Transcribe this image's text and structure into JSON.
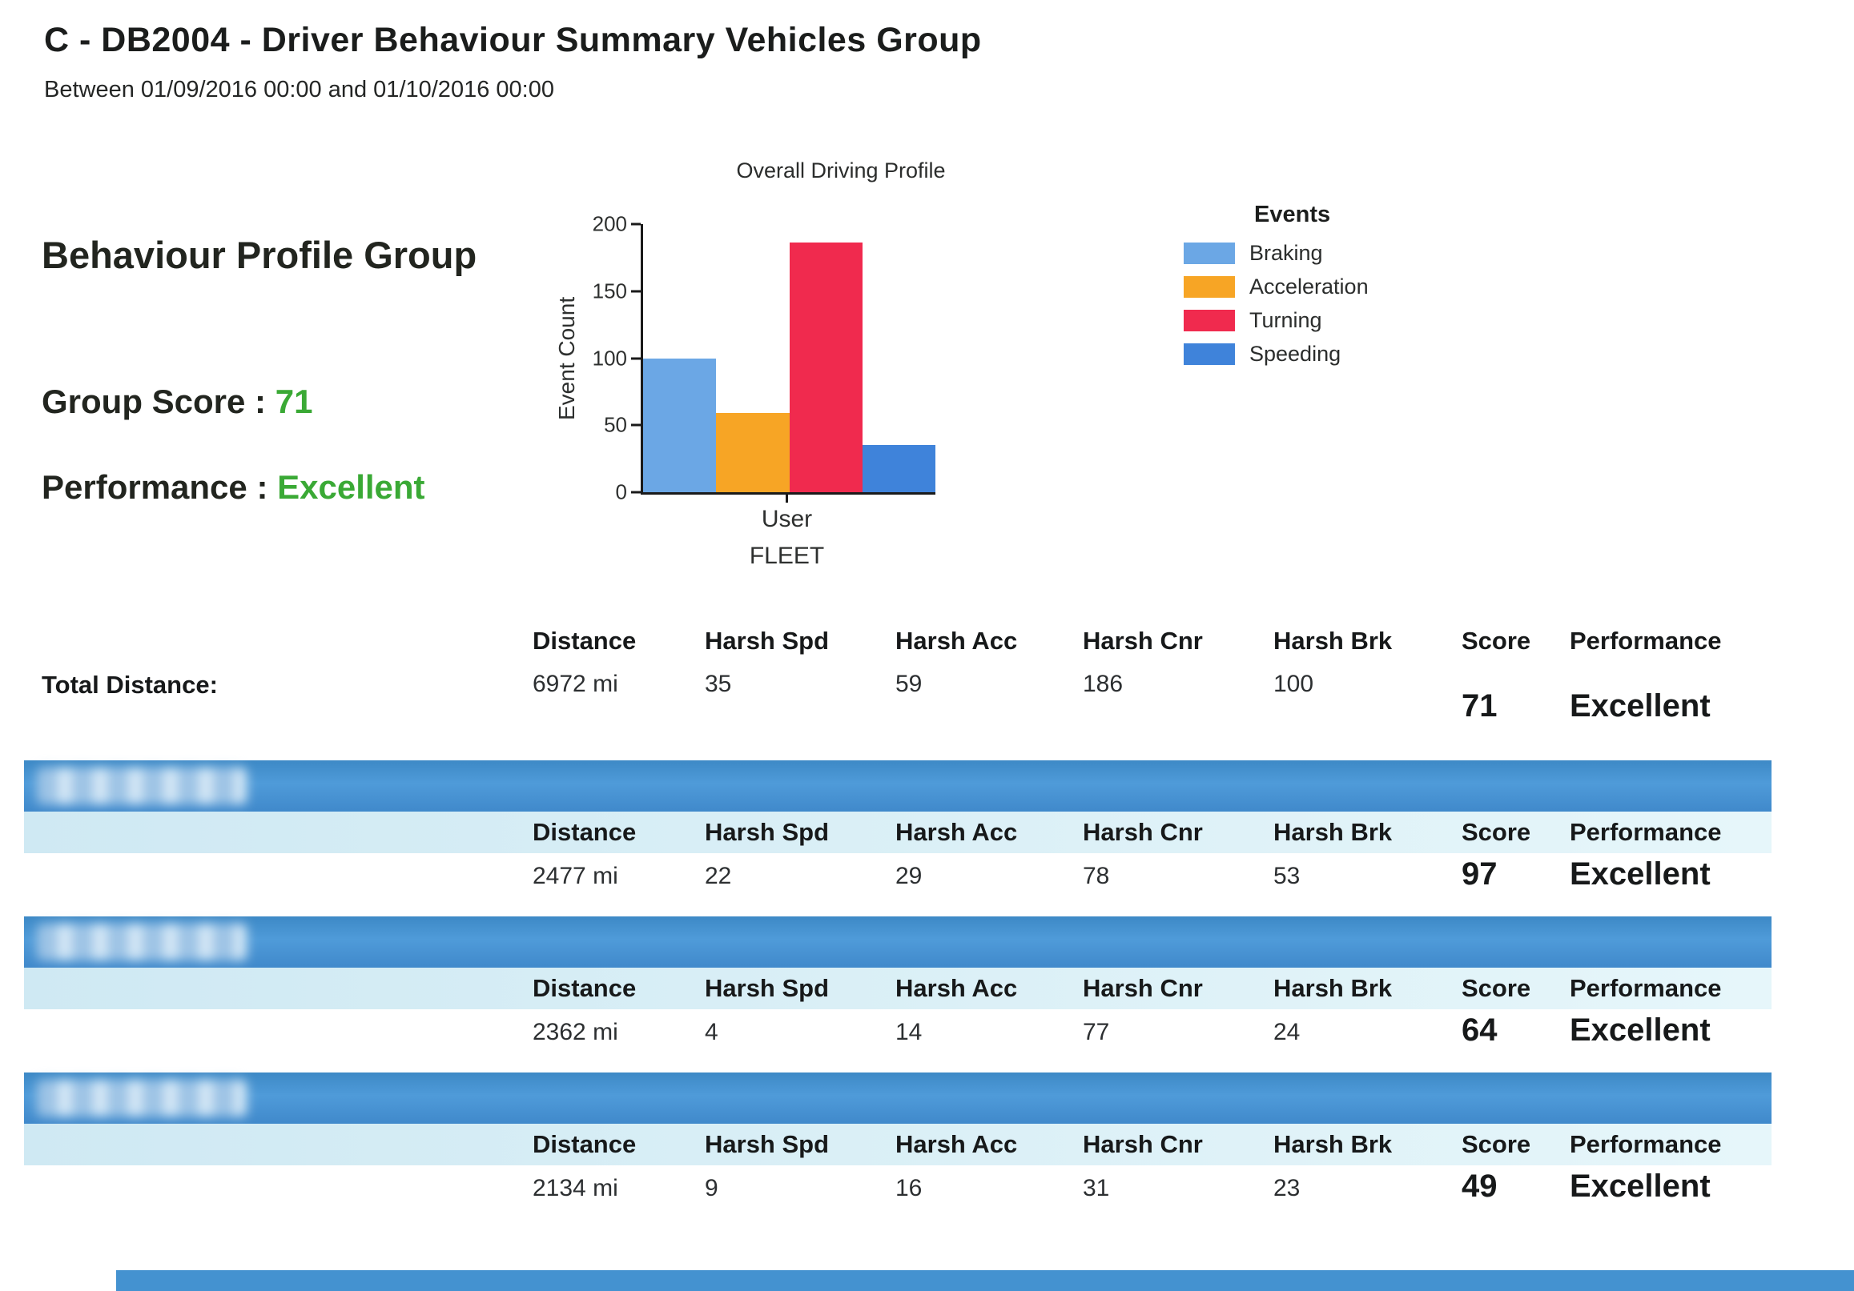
{
  "header": {
    "title": "C - DB2004 - Driver Behaviour Summary Vehicles Group",
    "date_range": "Between 01/09/2016 00:00 and 01/10/2016 00:00"
  },
  "profile": {
    "heading": "Behaviour Profile Group",
    "score_label": "Group Score :",
    "score_value": "71",
    "performance_label": "Performance :",
    "performance_value": "Excellent"
  },
  "chart_data": {
    "type": "bar",
    "title": "Overall Driving Profile",
    "xlabel": "FLEET",
    "ylabel": "Event Count",
    "categories": [
      "User"
    ],
    "series": [
      {
        "name": "Braking",
        "color": "#6ba7e5",
        "values": [
          100
        ]
      },
      {
        "name": "Acceleration",
        "color": "#f7a525",
        "values": [
          59
        ]
      },
      {
        "name": "Turning",
        "color": "#f02a4e",
        "values": [
          186
        ]
      },
      {
        "name": "Speeding",
        "color": "#3f83da",
        "values": [
          35
        ]
      }
    ],
    "ylim": [
      0,
      200
    ],
    "yticks": [
      0,
      50,
      100,
      150,
      200
    ],
    "legend_title": "Events",
    "legend_position": "right",
    "grid": false
  },
  "table_columns": [
    "Distance",
    "Harsh Spd",
    "Harsh Acc",
    "Harsh Cnr",
    "Harsh Brk",
    "Score",
    "Performance"
  ],
  "group_summary": {
    "row_label": "Total Distance:",
    "distance": "6972 mi",
    "harsh_spd": "35",
    "harsh_acc": "59",
    "harsh_cnr": "186",
    "harsh_brk": "100",
    "score": "71",
    "performance": "Excellent"
  },
  "vehicles": [
    {
      "registration_obscured": true,
      "distance": "2477 mi",
      "harsh_spd": "22",
      "harsh_acc": "29",
      "harsh_cnr": "78",
      "harsh_brk": "53",
      "score": "97",
      "performance": "Excellent"
    },
    {
      "registration_obscured": true,
      "distance": "2362 mi",
      "harsh_spd": "4",
      "harsh_acc": "14",
      "harsh_cnr": "77",
      "harsh_brk": "24",
      "score": "64",
      "performance": "Excellent"
    },
    {
      "registration_obscured": true,
      "distance": "2134 mi",
      "harsh_spd": "9",
      "harsh_acc": "16",
      "harsh_cnr": "31",
      "harsh_brk": "23",
      "score": "49",
      "performance": "Excellent"
    }
  ],
  "colors": {
    "accent_green": "#3aa935",
    "banner_blue": "#4492d0",
    "table_header_bg": "#d7eff7"
  }
}
